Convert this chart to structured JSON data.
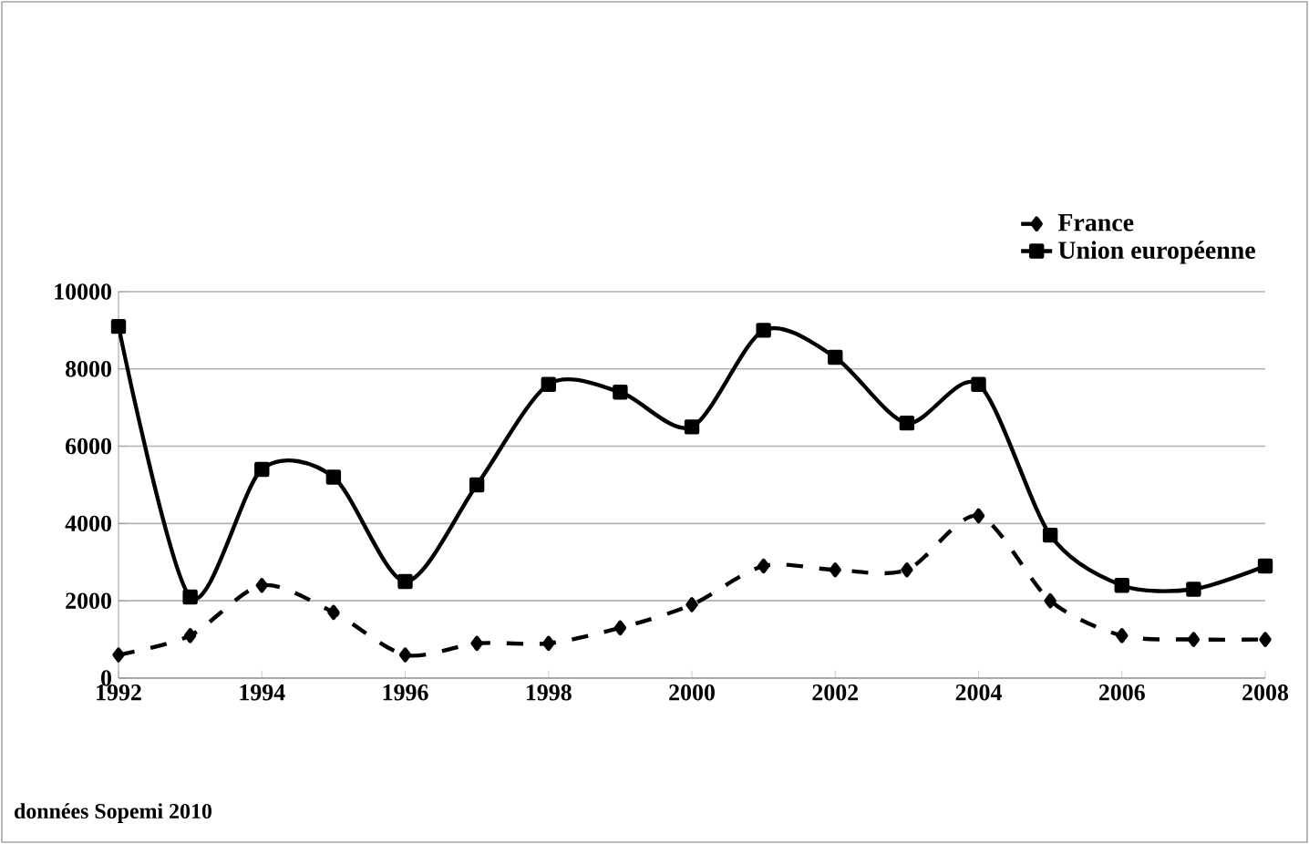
{
  "chart_data": {
    "type": "line",
    "x": [
      1992,
      1993,
      1994,
      1995,
      1996,
      1997,
      1998,
      1999,
      2000,
      2001,
      2002,
      2003,
      2004,
      2005,
      2006,
      2007,
      2008
    ],
    "series": [
      {
        "name": "France",
        "color": "#000000",
        "line_style": "dashed",
        "marker": "diamond",
        "values": [
          600,
          1100,
          2400,
          1700,
          600,
          900,
          900,
          1300,
          1900,
          2900,
          2800,
          2800,
          4200,
          2000,
          1100,
          1000,
          1000
        ]
      },
      {
        "name": "Union européenne",
        "color": "#000000",
        "line_style": "solid",
        "marker": "square",
        "values": [
          9100,
          2100,
          5400,
          5200,
          2500,
          5000,
          7600,
          7400,
          6500,
          9000,
          8300,
          6600,
          7600,
          3700,
          2400,
          2300,
          2900
        ]
      }
    ],
    "xlim": [
      1992,
      2008
    ],
    "xticks": [
      1992,
      1994,
      1996,
      1998,
      2000,
      2002,
      2004,
      2006,
      2008
    ],
    "ylim": [
      0,
      10000
    ],
    "yticks": [
      0,
      2000,
      4000,
      6000,
      8000,
      10000
    ],
    "grid": "y",
    "legend": "top right",
    "annotations": [
      "données Sopemi 2010"
    ]
  }
}
